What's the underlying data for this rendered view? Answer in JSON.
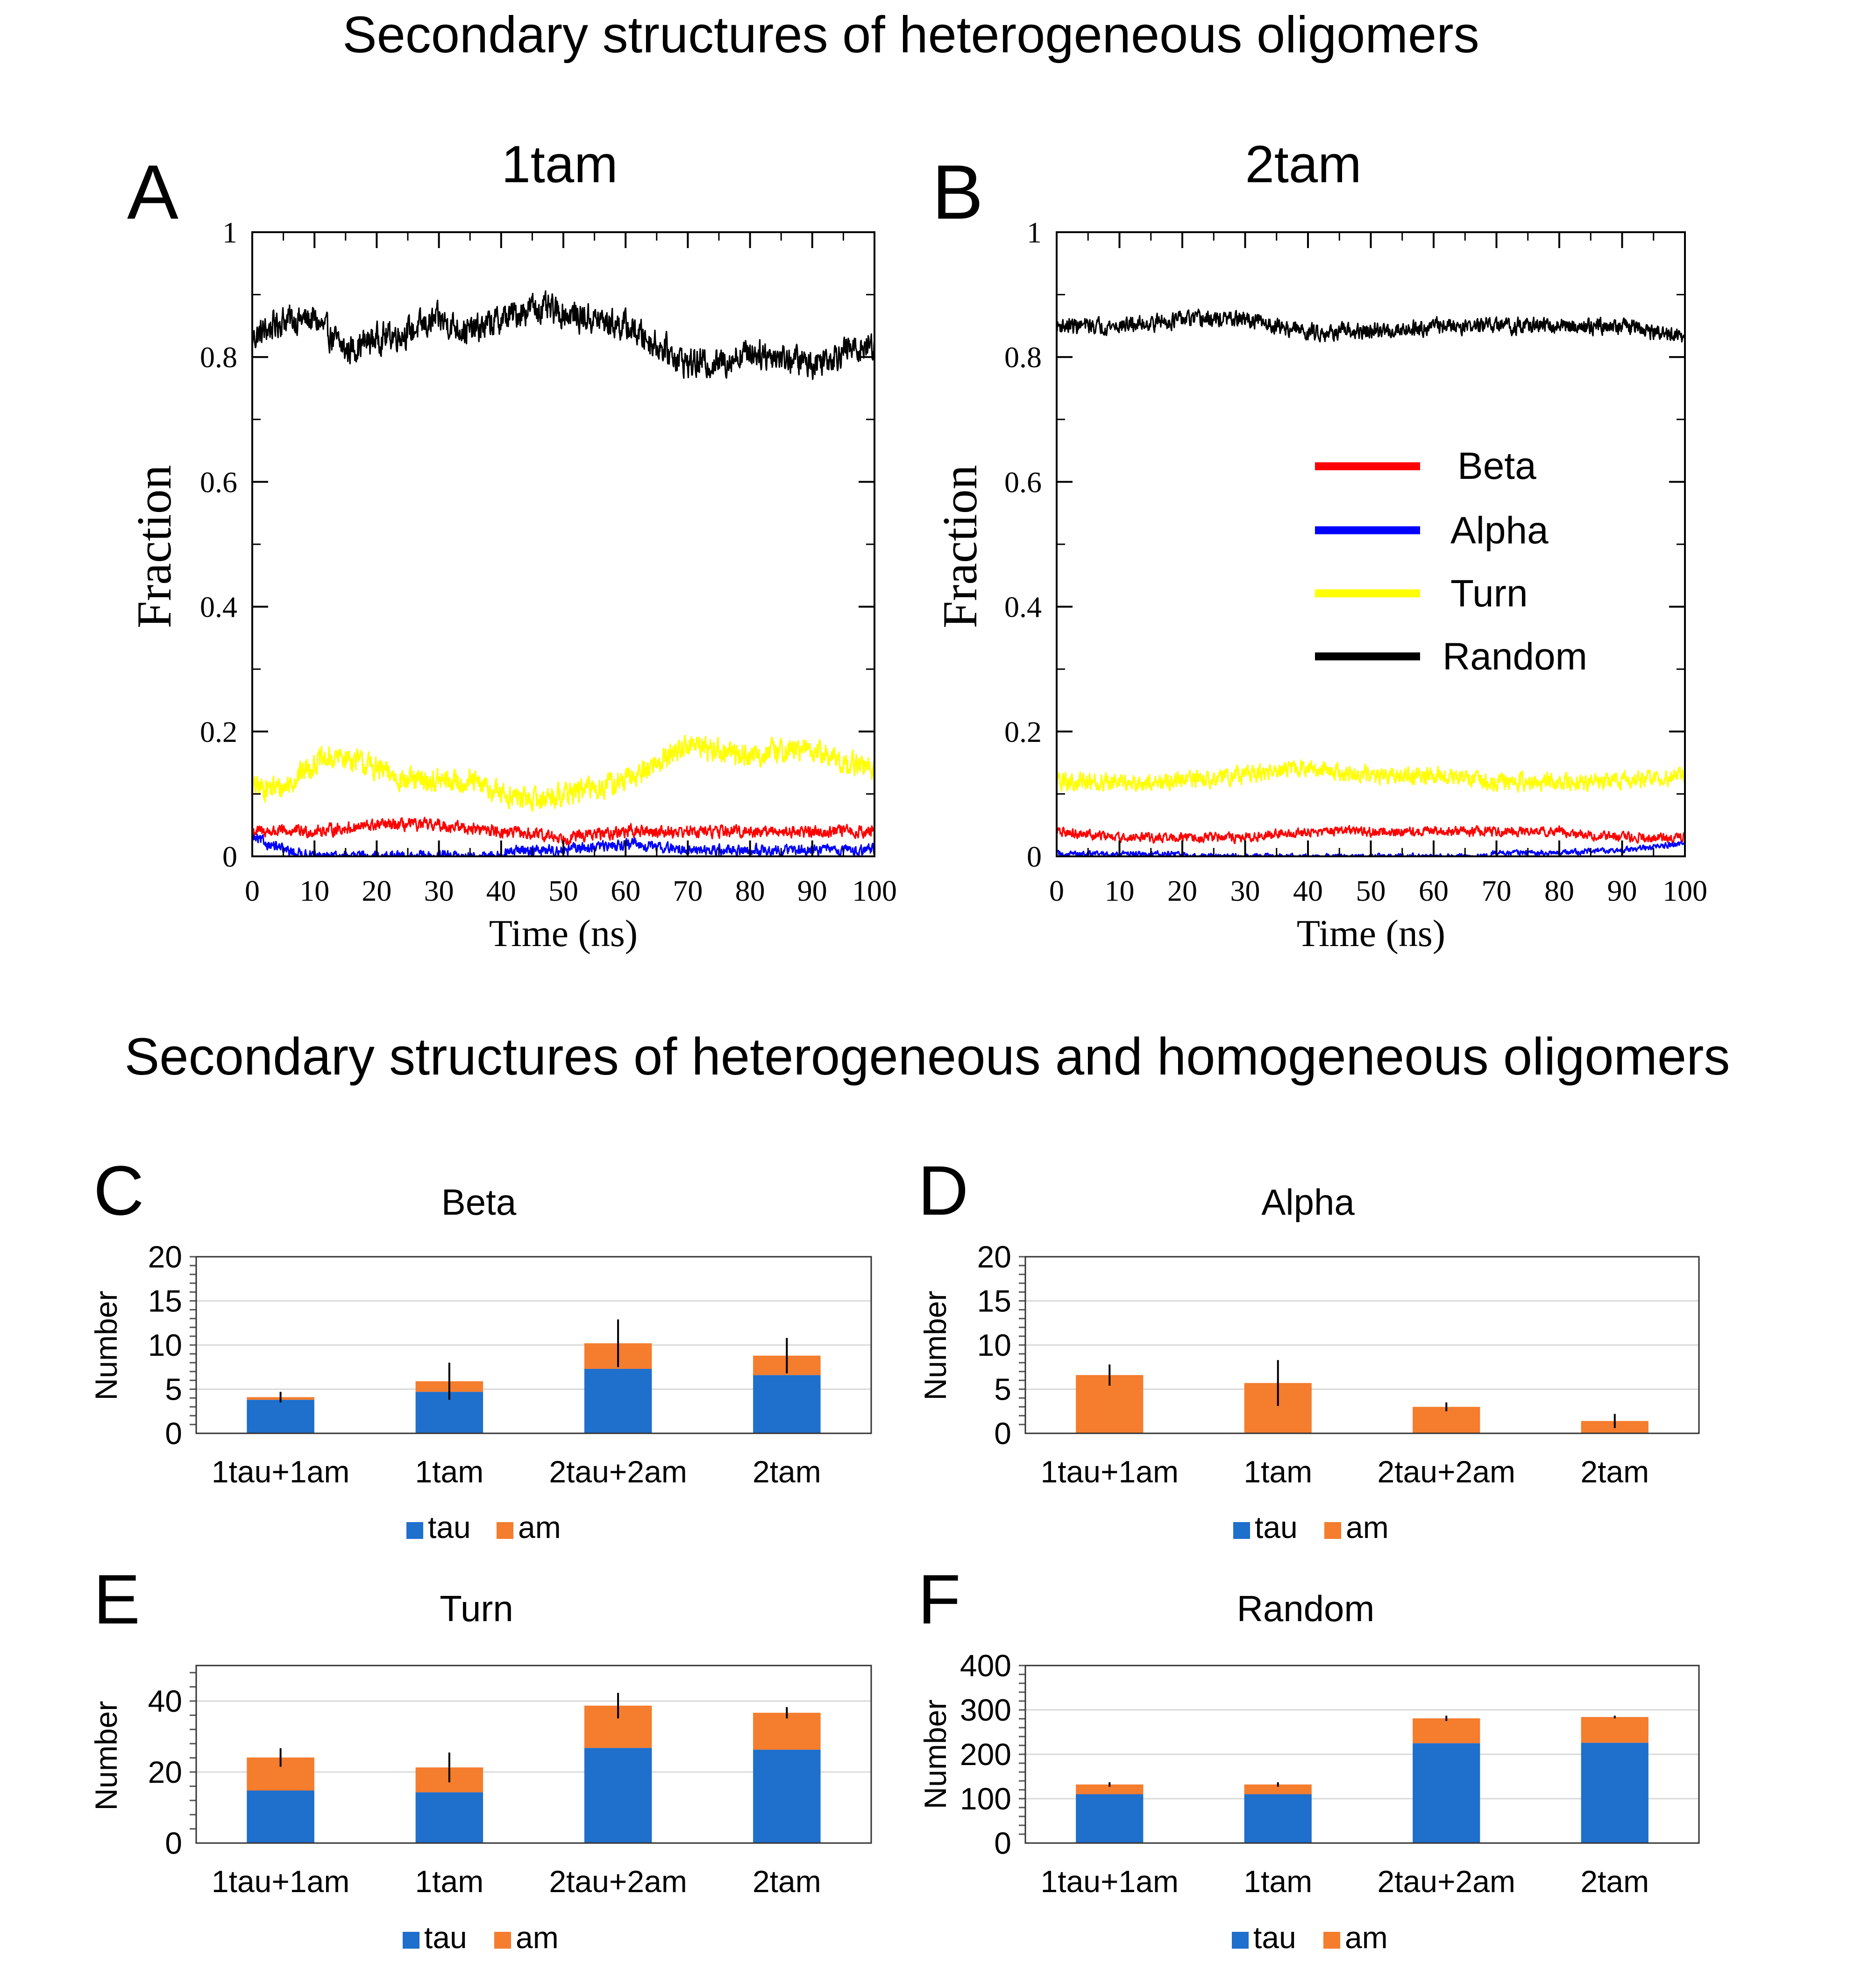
{
  "top_heading": "Secondary structures of heterogeneous oligomers",
  "bottom_heading": "Secondary structures of heterogeneous and homogeneous oligomers",
  "colors": {
    "beta": "#ff0000",
    "alpha": "#0000ff",
    "turn": "#ffff00",
    "random": "#000000",
    "tau": "#1f6fcc",
    "am": "#f47d2e",
    "grid": "#d9d9d9",
    "axis": "#000000"
  },
  "chart_data": [
    {
      "id": "A",
      "panel_letter": "A",
      "type": "line",
      "title": "1tam",
      "xlabel": "Time (ns)",
      "ylabel": "Fraction",
      "xlim": [
        0,
        100
      ],
      "ylim": [
        0,
        1
      ],
      "xticks": [
        0,
        10,
        20,
        30,
        40,
        50,
        60,
        70,
        80,
        90,
        100
      ],
      "yticks": [
        0,
        0.2,
        0.4,
        0.6,
        0.8,
        1
      ],
      "ytick_labels": [
        "0",
        "0.2",
        "0.4",
        "0.6",
        "0.8",
        "1"
      ],
      "series": [
        {
          "name": "Random",
          "color": "#000000",
          "noise": 0.022,
          "time": [
            0,
            5,
            10,
            15,
            20,
            25,
            30,
            35,
            40,
            45,
            50,
            55,
            60,
            65,
            70,
            75,
            80,
            85,
            90,
            95,
            100
          ],
          "fraction": [
            0.83,
            0.86,
            0.86,
            0.81,
            0.83,
            0.84,
            0.86,
            0.84,
            0.86,
            0.88,
            0.87,
            0.86,
            0.85,
            0.82,
            0.79,
            0.79,
            0.81,
            0.8,
            0.79,
            0.81,
            0.82
          ]
        },
        {
          "name": "Turn",
          "color": "#ffff00",
          "noise": 0.018,
          "time": [
            0,
            5,
            10,
            15,
            20,
            25,
            30,
            35,
            40,
            45,
            50,
            55,
            60,
            65,
            70,
            75,
            80,
            85,
            90,
            95,
            100
          ],
          "fraction": [
            0.11,
            0.11,
            0.15,
            0.16,
            0.14,
            0.12,
            0.12,
            0.12,
            0.1,
            0.09,
            0.1,
            0.11,
            0.12,
            0.15,
            0.18,
            0.17,
            0.16,
            0.17,
            0.17,
            0.15,
            0.14
          ]
        },
        {
          "name": "Beta",
          "color": "#ff0000",
          "noise": 0.009,
          "time": [
            0,
            10,
            20,
            30,
            40,
            50,
            60,
            70,
            80,
            90,
            100
          ],
          "fraction": [
            0.04,
            0.04,
            0.05,
            0.05,
            0.04,
            0.03,
            0.04,
            0.04,
            0.04,
            0.04,
            0.04
          ]
        },
        {
          "name": "Alpha",
          "color": "#0000ff",
          "noise": 0.008,
          "time": [
            0,
            5,
            10,
            20,
            30,
            40,
            42,
            50,
            60,
            70,
            80,
            90,
            100
          ],
          "fraction": [
            0.03,
            0.01,
            0.0,
            0.0,
            0.0,
            0.0,
            0.01,
            0.01,
            0.02,
            0.01,
            0.01,
            0.01,
            0.01
          ]
        }
      ]
    },
    {
      "id": "B",
      "panel_letter": "B",
      "type": "line",
      "title": "2tam",
      "xlabel": "Time (ns)",
      "ylabel": "Fraction",
      "xlim": [
        0,
        100
      ],
      "ylim": [
        0,
        1
      ],
      "xticks": [
        0,
        10,
        20,
        30,
        40,
        50,
        60,
        70,
        80,
        90,
        100
      ],
      "yticks": [
        0,
        0.2,
        0.4,
        0.6,
        0.8,
        1
      ],
      "ytick_labels": [
        "0",
        "0.2",
        "0.4",
        "0.6",
        "0.8",
        "1"
      ],
      "legend": {
        "position": "center-right",
        "entries": [
          "Beta",
          "Alpha",
          "Turn",
          "Random"
        ]
      },
      "series": [
        {
          "name": "Random",
          "color": "#000000",
          "noise": 0.012,
          "time": [
            0,
            10,
            20,
            30,
            40,
            50,
            60,
            70,
            80,
            90,
            100
          ],
          "fraction": [
            0.85,
            0.85,
            0.86,
            0.86,
            0.84,
            0.84,
            0.85,
            0.85,
            0.85,
            0.85,
            0.83
          ]
        },
        {
          "name": "Turn",
          "color": "#ffff00",
          "noise": 0.013,
          "time": [
            0,
            10,
            20,
            30,
            40,
            50,
            60,
            70,
            80,
            90,
            100
          ],
          "fraction": [
            0.12,
            0.12,
            0.12,
            0.13,
            0.14,
            0.13,
            0.13,
            0.12,
            0.12,
            0.12,
            0.13
          ]
        },
        {
          "name": "Beta",
          "color": "#ff0000",
          "noise": 0.007,
          "time": [
            0,
            10,
            20,
            30,
            40,
            50,
            60,
            70,
            80,
            90,
            100
          ],
          "fraction": [
            0.04,
            0.03,
            0.03,
            0.03,
            0.04,
            0.04,
            0.04,
            0.04,
            0.04,
            0.03,
            0.03
          ]
        },
        {
          "name": "Alpha",
          "color": "#0000ff",
          "noise": 0.004,
          "time": [
            0,
            20,
            21,
            68,
            70,
            80,
            90,
            100
          ],
          "fraction": [
            0.004,
            0.004,
            0.0,
            0.0,
            0.006,
            0.006,
            0.01,
            0.02
          ]
        }
      ]
    },
    {
      "id": "C",
      "panel_letter": "C",
      "type": "bar",
      "stacked": true,
      "title": "Beta",
      "ylabel": "Number",
      "ylim": [
        0,
        20
      ],
      "yticks": [
        0,
        5,
        10,
        15,
        20
      ],
      "categories": [
        "1tau+1am",
        "1tam",
        "2tau+2am",
        "2tam"
      ],
      "series": [
        {
          "name": "tau",
          "values": [
            3.8,
            4.7,
            7.3,
            6.6
          ]
        },
        {
          "name": "am",
          "values": [
            0.3,
            1.2,
            2.9,
            2.2
          ]
        }
      ],
      "error": [
        0.6,
        2.1,
        2.7,
        2.0
      ],
      "legend": [
        "tau",
        "am"
      ]
    },
    {
      "id": "D",
      "panel_letter": "D",
      "type": "bar",
      "stacked": true,
      "title": "Alpha",
      "ylabel": "Number",
      "ylim": [
        0,
        20
      ],
      "yticks": [
        0,
        5,
        10,
        15,
        20
      ],
      "categories": [
        "1tau+1am",
        "1tam",
        "2tau+2am",
        "2tam"
      ],
      "series": [
        {
          "name": "tau",
          "values": [
            0,
            0,
            0,
            0
          ]
        },
        {
          "name": "am",
          "values": [
            6.6,
            5.7,
            3.0,
            1.4
          ]
        }
      ],
      "error": [
        1.2,
        2.6,
        0.5,
        0.8
      ],
      "legend": [
        "tau",
        "am"
      ]
    },
    {
      "id": "E",
      "panel_letter": "E",
      "type": "bar",
      "stacked": true,
      "title": "Turn",
      "ylabel": "Number",
      "ylim": [
        0,
        50
      ],
      "yticks": [
        0,
        20,
        40
      ],
      "categories": [
        "1tau+1am",
        "1tam",
        "2tau+2am",
        "2tam"
      ],
      "series": [
        {
          "name": "tau",
          "values": [
            14.8,
            14.3,
            26.8,
            26.3
          ]
        },
        {
          "name": "am",
          "values": [
            9.3,
            7.0,
            11.9,
            10.4
          ]
        }
      ],
      "error": [
        2.6,
        4.2,
        3.6,
        1.6
      ],
      "legend": [
        "tau",
        "am"
      ]
    },
    {
      "id": "F",
      "panel_letter": "F",
      "type": "bar",
      "stacked": true,
      "title": "Random",
      "ylabel": "Number",
      "ylim": [
        0,
        400
      ],
      "yticks": [
        0,
        100,
        200,
        300,
        400
      ],
      "categories": [
        "1tau+1am",
        "1tam",
        "2tau+2am",
        "2tam"
      ],
      "series": [
        {
          "name": "tau",
          "values": [
            110,
            110,
            225,
            226
          ]
        },
        {
          "name": "am",
          "values": [
            22,
            22,
            56,
            58
          ]
        }
      ],
      "error": [
        5,
        5,
        6,
        3
      ],
      "legend": [
        "tau",
        "am"
      ]
    }
  ]
}
